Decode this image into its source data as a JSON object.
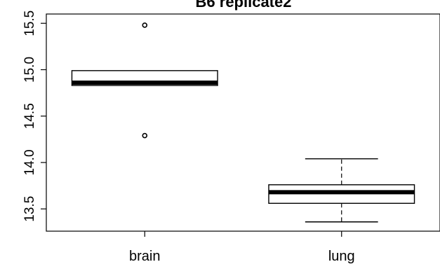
{
  "chart_data": {
    "type": "boxplot",
    "title": "B6 replicate2",
    "xlabel": "",
    "ylabel": "",
    "categories": [
      "brain",
      "lung"
    ],
    "y_ticks": [
      13.5,
      14.0,
      14.5,
      15.0,
      15.5
    ],
    "y_tick_labels": [
      "13.5",
      "14.0",
      "14.5",
      "15.0",
      "15.5"
    ],
    "ylim": [
      13.26,
      15.6
    ],
    "grid": false,
    "boxes": [
      {
        "name": "brain",
        "whisker_low": 14.83,
        "q1": 14.83,
        "median": 14.86,
        "q3": 14.99,
        "whisker_high": 14.99,
        "outliers": [
          15.48,
          14.29
        ]
      },
      {
        "name": "lung",
        "whisker_low": 13.36,
        "q1": 13.56,
        "median": 13.68,
        "q3": 13.76,
        "whisker_high": 14.04,
        "outliers": []
      }
    ]
  }
}
